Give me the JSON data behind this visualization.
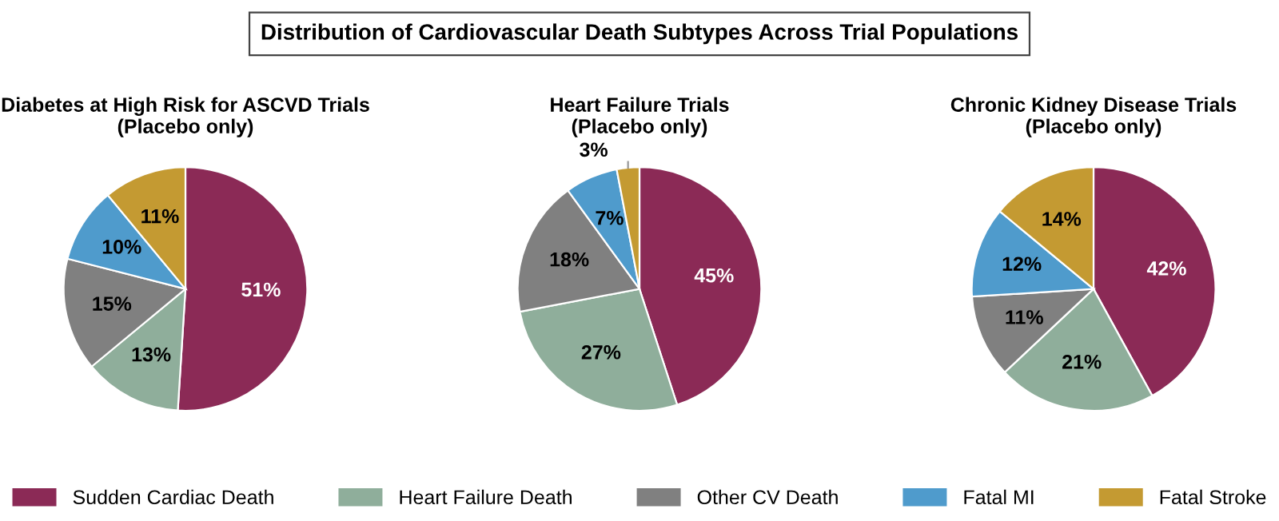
{
  "chart_data": [
    {
      "type": "pie",
      "title": "Diabetes at High Risk for ASCVD Trials",
      "subtitle": "(Placebo only)",
      "annotations": [
        "Distribution of Cardiovascular Death Subtypes Across Trial Populations"
      ],
      "categories": [
        "Sudden Cardiac Death",
        "Heart Failure Death",
        "Other CV Death",
        "Fatal MI",
        "Fatal Stroke"
      ],
      "values": [
        51,
        13,
        15,
        10,
        11
      ],
      "value_labels": [
        "51%",
        "13%",
        "15%",
        "10%",
        "11%"
      ],
      "colors": [
        "#8b2a56",
        "#8fae9b",
        "#808080",
        "#4f9bcc",
        "#c49a32"
      ],
      "legend": "bottom"
    },
    {
      "type": "pie",
      "title": "Heart Failure Trials",
      "subtitle": "(Placebo only)",
      "values": [
        45,
        27,
        18,
        7,
        3
      ],
      "value_labels": [
        "45%",
        "27%",
        "18%",
        "7%",
        "3%"
      ],
      "colors": [
        "#8b2a56",
        "#8fae9b",
        "#808080",
        "#4f9bcc",
        "#c49a32"
      ]
    },
    {
      "type": "pie",
      "title": "Chronic Kidney Disease Trials",
      "subtitle": "(Placebo only)",
      "values": [
        42,
        21,
        11,
        12,
        14
      ],
      "value_labels": [
        "42%",
        "21%",
        "11%",
        "12%",
        "14%"
      ],
      "colors": [
        "#8b2a56",
        "#8fae9b",
        "#808080",
        "#4f9bcc",
        "#c49a32"
      ]
    }
  ]
}
